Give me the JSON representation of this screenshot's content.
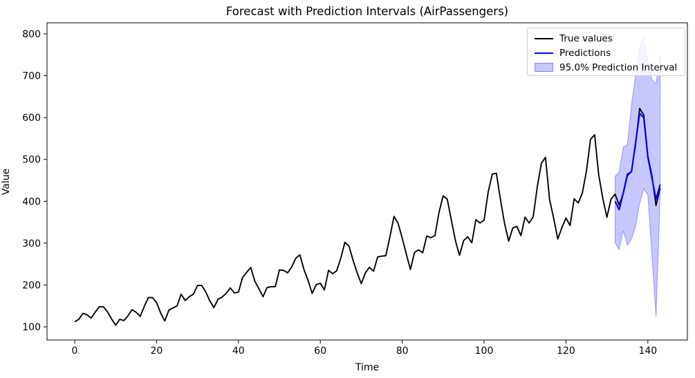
{
  "figure": {
    "title": "Forecast with Prediction Intervals (AirPassengers)",
    "xlabel": "Time",
    "ylabel": "Value"
  },
  "legend": {
    "items": [
      {
        "label": "True values",
        "type": "line",
        "color": "#000000"
      },
      {
        "label": "Predictions",
        "type": "line",
        "color": "#0000ff"
      },
      {
        "label": "95.0% Prediction Interval",
        "type": "patch",
        "fill": "rgba(0,0,255,0.22)",
        "edge": "rgba(0,0,255,0.35)"
      }
    ]
  },
  "chart_data": {
    "type": "line",
    "title": "Forecast with Prediction Intervals (AirPassengers)",
    "xlabel": "Time",
    "ylabel": "Value",
    "xlim": [
      -6.76,
      149.66
    ],
    "ylim": [
      68.6,
      826.4
    ],
    "x_ticks": [
      0,
      20,
      40,
      60,
      80,
      100,
      120,
      140
    ],
    "y_ticks": [
      100,
      200,
      300,
      400,
      500,
      600,
      700,
      800
    ],
    "grid": false,
    "legend_position": "upper right",
    "background": "#ffffff",
    "series": [
      {
        "id": "true-values",
        "name": "True values",
        "color": "#000000",
        "line_width": 1.9,
        "x_start": 0,
        "values": [
          112,
          118,
          132,
          129,
          121,
          135,
          148,
          148,
          136,
          119,
          104,
          118,
          115,
          126,
          141,
          135,
          125,
          149,
          170,
          170,
          158,
          133,
          114,
          140,
          145,
          150,
          178,
          163,
          172,
          178,
          199,
          199,
          184,
          162,
          146,
          166,
          171,
          180,
          193,
          181,
          183,
          218,
          230,
          242,
          209,
          191,
          172,
          194,
          196,
          196,
          236,
          235,
          229,
          243,
          264,
          272,
          237,
          211,
          180,
          201,
          204,
          188,
          235,
          227,
          234,
          264,
          302,
          293,
          259,
          229,
          203,
          229,
          242,
          233,
          267,
          269,
          270,
          315,
          364,
          347,
          312,
          274,
          237,
          278,
          284,
          277,
          317,
          313,
          318,
          374,
          413,
          405,
          355,
          306,
          271,
          306,
          315,
          301,
          356,
          348,
          355,
          422,
          465,
          467,
          404,
          347,
          305,
          336,
          340,
          318,
          362,
          348,
          363,
          435,
          491,
          505,
          404,
          359,
          310,
          337,
          360,
          342,
          406,
          396,
          420,
          472,
          548,
          559,
          463,
          407,
          362,
          405,
          417,
          391,
          419,
          461,
          472,
          535,
          622,
          606,
          508,
          461,
          390,
          432
        ]
      },
      {
        "id": "predictions",
        "name": "Predictions",
        "color": "#0000ff",
        "line_width": 2.1,
        "x_start": 132,
        "values": [
          400,
          380,
          420,
          465,
          470,
          540,
          610,
          600,
          505,
          455,
          405,
          440
        ]
      }
    ],
    "band": {
      "id": "prediction-interval",
      "name": "95.0% Prediction Interval",
      "fill": "rgba(0,0,255,0.22)",
      "edge": "rgba(0,0,255,0.35)",
      "x": [
        132,
        133,
        134,
        135,
        136,
        137,
        138,
        139,
        140,
        141,
        142,
        143
      ],
      "upper": [
        460,
        470,
        530,
        535,
        630,
        700,
        770,
        790,
        730,
        690,
        680,
        750
      ],
      "lower": [
        300,
        285,
        330,
        295,
        310,
        340,
        395,
        430,
        415,
        270,
        125,
        415
      ]
    }
  }
}
